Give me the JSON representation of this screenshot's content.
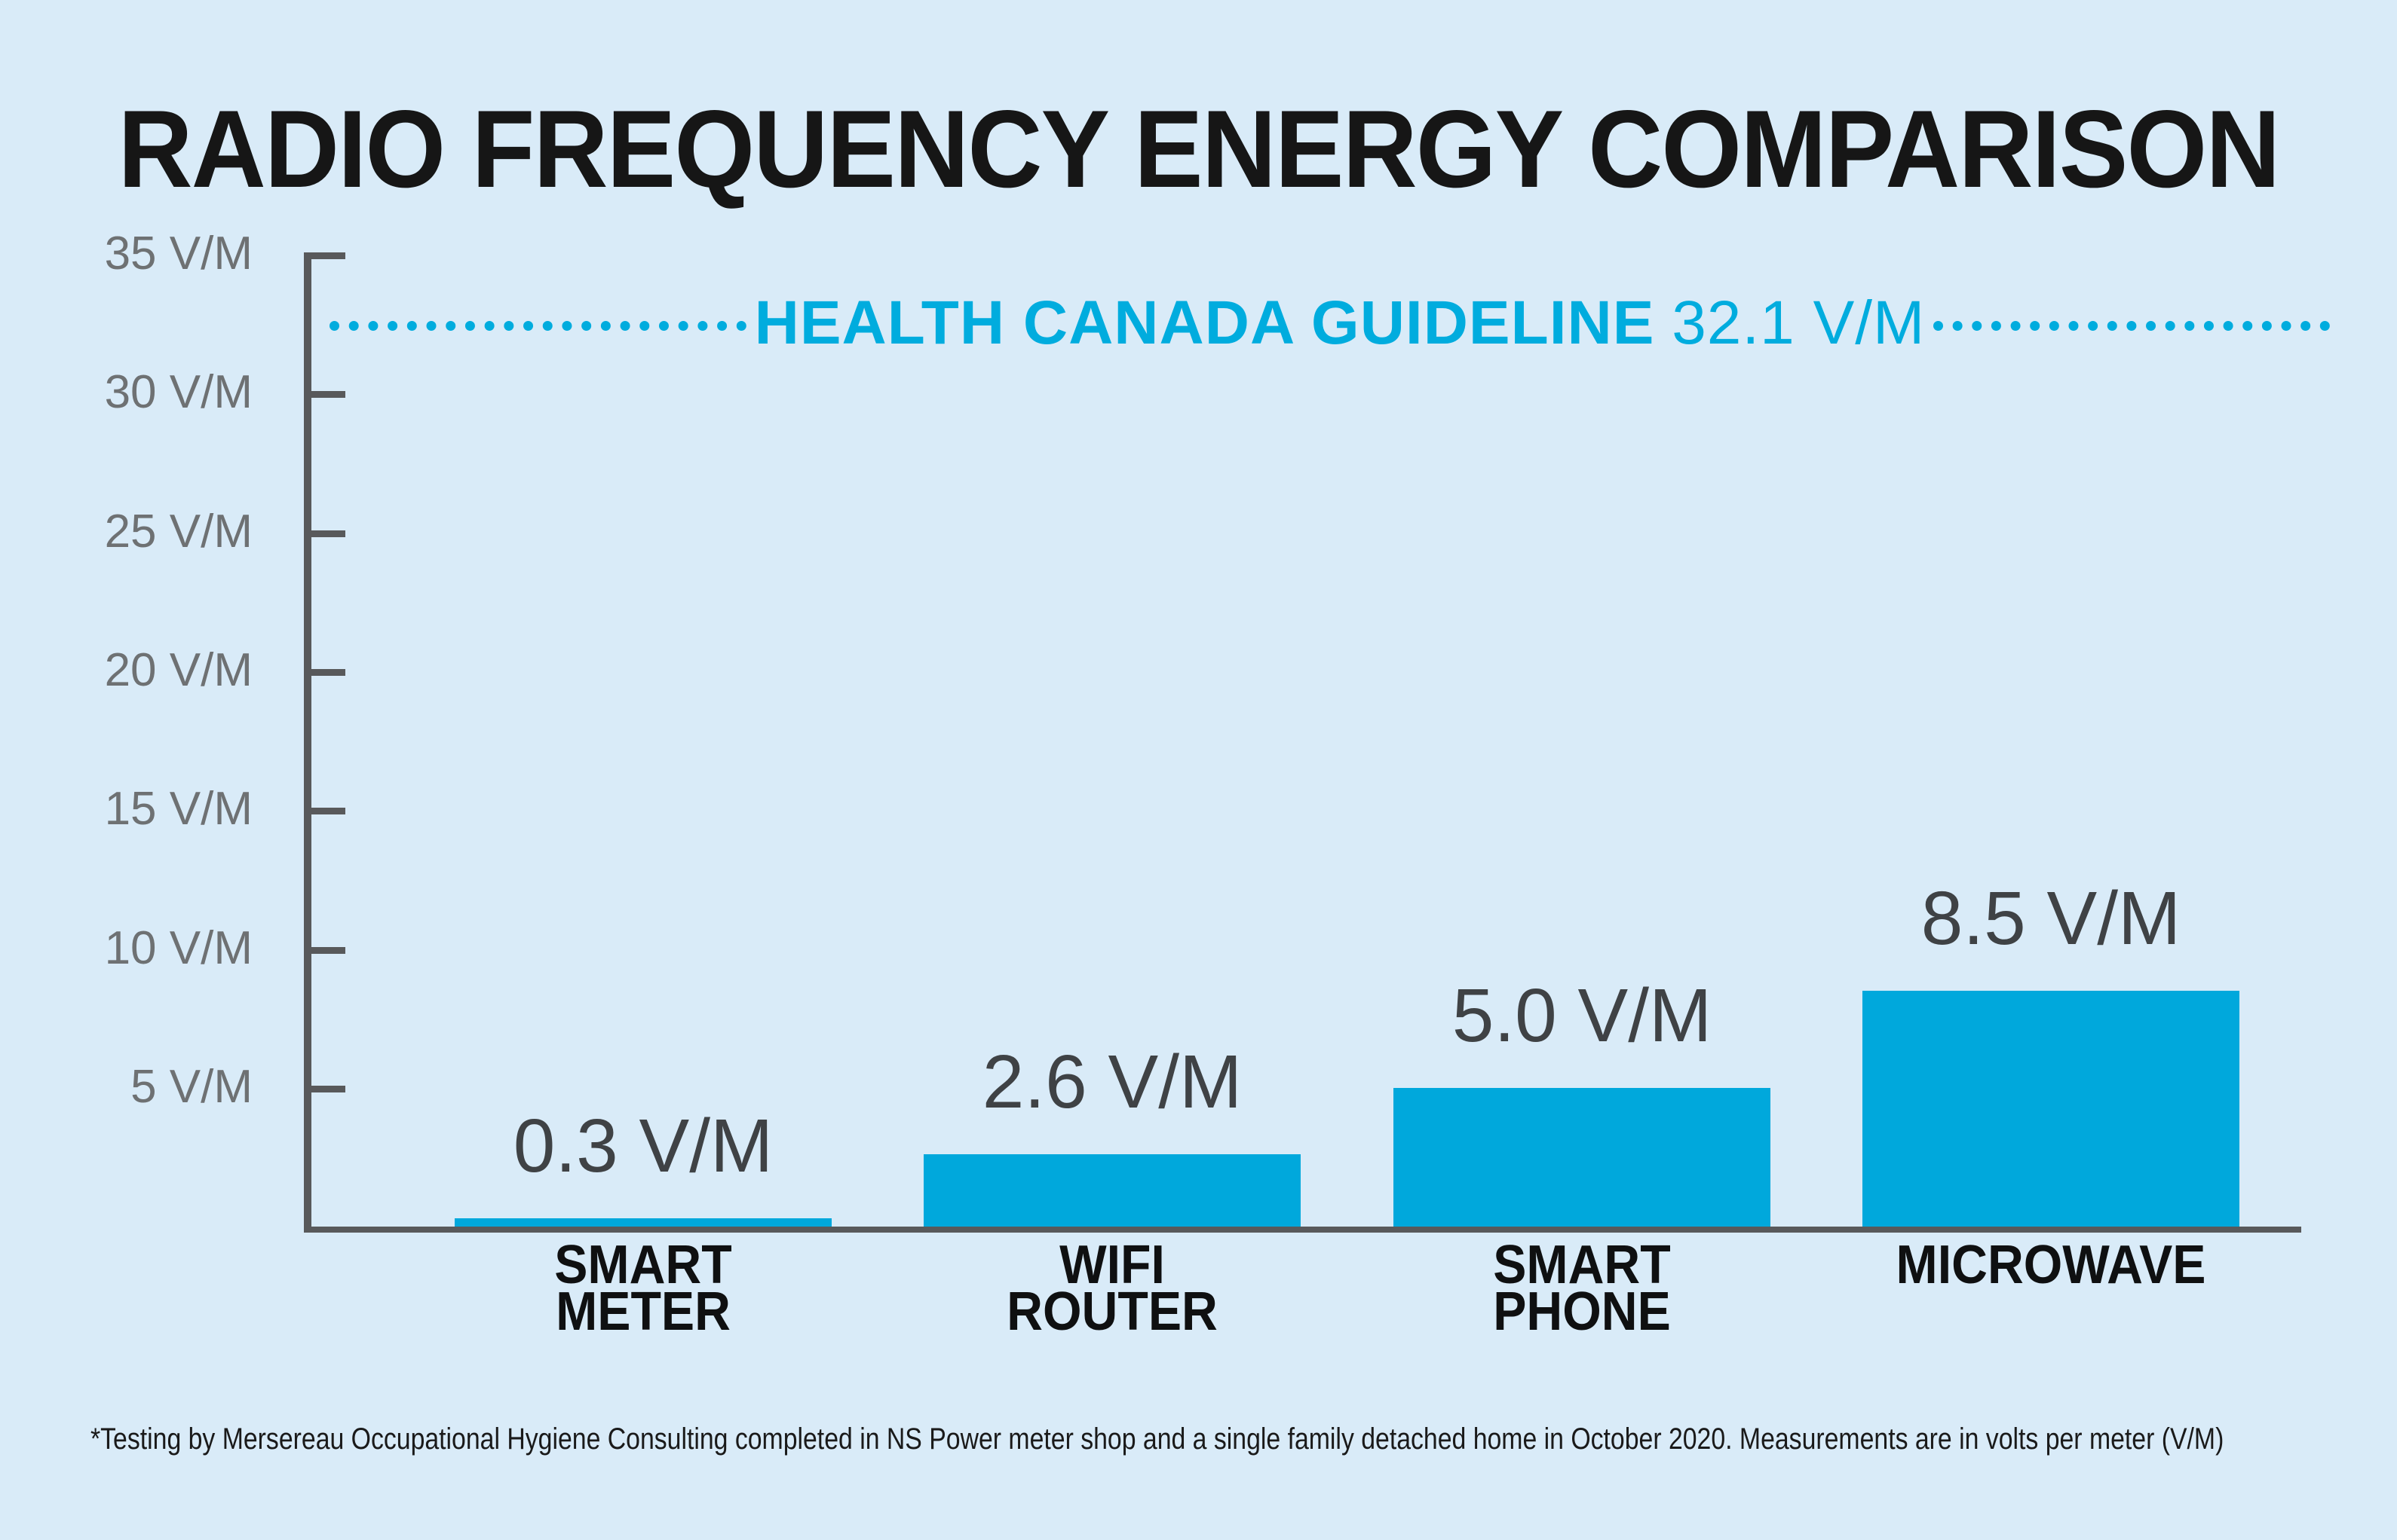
{
  "title": "RADIO FREQUENCY ENERGY COMPARISON",
  "guideline": {
    "label": "HEALTH CANADA GUIDELINE",
    "value_display": "32.1 V/M",
    "value": 32.1
  },
  "y_axis": {
    "unit": "V/M",
    "tick_labels": [
      "35 V/M",
      "30 V/M",
      "25 V/M",
      "20 V/M",
      "15 V/M",
      "10 V/M",
      "5 V/M"
    ],
    "tick_values": [
      35,
      30,
      25,
      20,
      15,
      10,
      5
    ]
  },
  "chart_data": {
    "type": "bar",
    "title": "RADIO FREQUENCY ENERGY COMPARISON",
    "categories": [
      "SMART METER",
      "WIFI ROUTER",
      "SMART PHONE",
      "MICROWAVE"
    ],
    "category_lines": [
      [
        "SMART",
        "METER"
      ],
      [
        "WIFI",
        "ROUTER"
      ],
      [
        "SMART",
        "PHONE"
      ],
      [
        "MICROWAVE"
      ]
    ],
    "values": [
      0.3,
      2.6,
      5.0,
      8.5
    ],
    "value_labels": [
      "0.3 V/M",
      "2.6 V/M",
      "5.0 V/M",
      "8.5 V/M"
    ],
    "xlabel": "",
    "ylabel": "V/M",
    "ylim": [
      0,
      35
    ],
    "grid": false,
    "legend": false,
    "annotations": [
      {
        "type": "reference-line",
        "style": "dotted",
        "label": "HEALTH CANADA GUIDELINE",
        "value": 32.1,
        "value_display": "32.1 V/M"
      }
    ]
  },
  "footnote": "*Testing by Mersereau Occupational Hygiene Consulting completed in NS Power meter shop and a single family detached home in October 2020. Measurements are in volts per meter (V/M)",
  "colors": {
    "background": "#D9EBF8",
    "bar": "#00A8DC",
    "guideline_accent": "#00ACDE",
    "axis": "#58595B",
    "y_label_gray": "#6E7173",
    "value_label_gray": "#3F4245",
    "category_label_black": "#0F1011",
    "title_black": "#161616"
  }
}
